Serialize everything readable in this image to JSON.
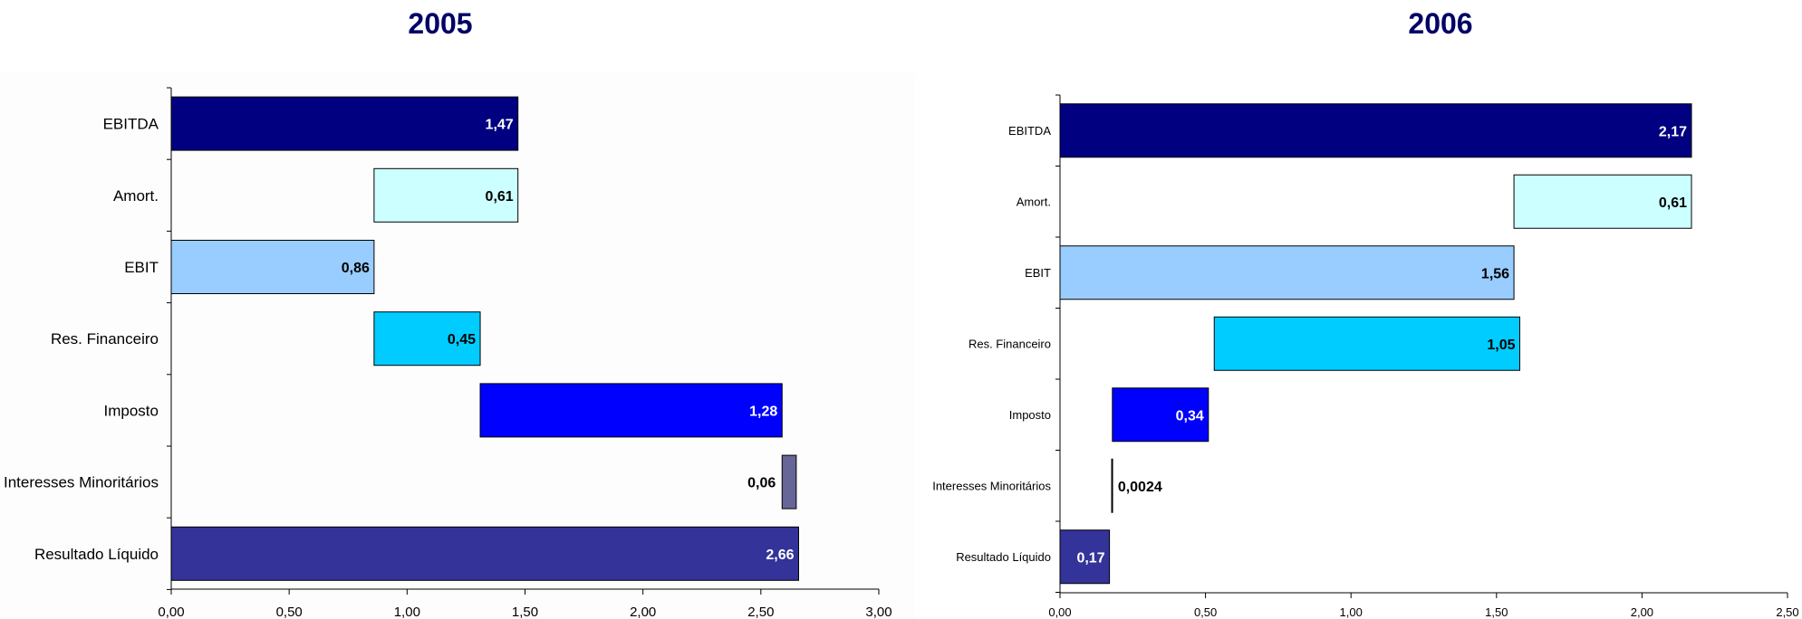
{
  "chart_data": [
    {
      "type": "bar",
      "subtype": "waterfall-horizontal",
      "title": "2005",
      "categories": [
        "EBITDA",
        "Amort.",
        "EBIT",
        "Res. Financeiro",
        "Imposto",
        "Interesses Minoritários",
        "Resultado Líquido"
      ],
      "bars": [
        {
          "start": 0,
          "end": 1.47,
          "label": "1,47",
          "color": "#000080",
          "label_color": "#ffffff"
        },
        {
          "start": 0.86,
          "end": 1.47,
          "label": "0,61",
          "color": "#ccffff",
          "label_color": "#000000"
        },
        {
          "start": 0,
          "end": 0.86,
          "label": "0,86",
          "color": "#99ccff",
          "label_color": "#000000"
        },
        {
          "start": 0.86,
          "end": 1.31,
          "label": "0,45",
          "color": "#00ccff",
          "label_color": "#000000"
        },
        {
          "start": 1.31,
          "end": 2.59,
          "label": "1,28",
          "color": "#0000ff",
          "label_color": "#ffffff"
        },
        {
          "start": 2.59,
          "end": 2.65,
          "label": "0,06",
          "color": "#666699",
          "label_color": "#000000"
        },
        {
          "start": 0,
          "end": 2.66,
          "label": "2,66",
          "color": "#333399",
          "label_color": "#ffffff"
        }
      ],
      "xlim": [
        0,
        3.0
      ],
      "xticks": [
        "0,00",
        "0,50",
        "1,00",
        "1,50",
        "2,00",
        "2,50",
        "3,00"
      ],
      "grid": false
    },
    {
      "type": "bar",
      "subtype": "waterfall-horizontal",
      "title": "2006",
      "categories": [
        "EBITDA",
        "Amort.",
        "EBIT",
        "Res. Financeiro",
        "Imposto",
        "Interesses Minoritários",
        "Resultado Líquido"
      ],
      "bars": [
        {
          "start": 0,
          "end": 2.17,
          "label": "2,17",
          "color": "#000080",
          "label_color": "#ffffff"
        },
        {
          "start": 1.56,
          "end": 2.17,
          "label": "0,61",
          "color": "#ccffff",
          "label_color": "#000000"
        },
        {
          "start": 0,
          "end": 1.56,
          "label": "1,56",
          "color": "#99ccff",
          "label_color": "#000000"
        },
        {
          "start": 0.53,
          "end": 1.58,
          "label": "1,05",
          "color": "#00ccff",
          "label_color": "#000000"
        },
        {
          "start": 0.18,
          "end": 0.51,
          "label": "0,34",
          "color": "#0000ff",
          "label_color": "#ffffff"
        },
        {
          "start": 0.1776,
          "end": 0.18,
          "label": "0,0024",
          "color": "#666699",
          "label_color": "#000000"
        },
        {
          "start": 0,
          "end": 0.17,
          "label": "0,17",
          "color": "#333399",
          "label_color": "#ffffff"
        }
      ],
      "xlim": [
        0,
        2.5
      ],
      "xticks": [
        "0,00",
        "0,50",
        "1,00",
        "1,50",
        "2,00",
        "2,50"
      ],
      "grid": false
    }
  ]
}
